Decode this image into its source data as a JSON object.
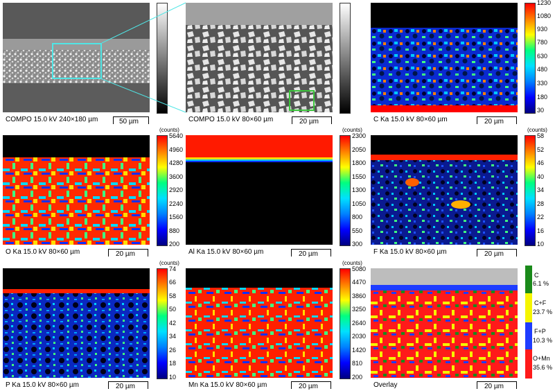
{
  "panels": [
    {
      "caption": "COMPO 15.0 kV 240×180 µm",
      "scale": "50 µm"
    },
    {
      "caption": "COMPO 15.0 kV 80×60 µm",
      "scale": "20 µm"
    },
    {
      "caption": "C Ka 15.0 kV 80×60 µm",
      "scale": "20 µm"
    },
    {
      "caption": "O Ka 15.0 kV 80×60 µm",
      "scale": "20 µm"
    },
    {
      "caption": "Al Ka 15.0 kV 80×60 µm",
      "scale": "20 µm"
    },
    {
      "caption": "F Ka 15.0 kV 80×60 µm",
      "scale": "20 µm"
    },
    {
      "caption": "P Ka 15.0 kV 80×60 µm",
      "scale": "20 µm"
    },
    {
      "caption": "Mn Ka 15.0 kV 80×60 µm",
      "scale": "20 µm"
    },
    {
      "caption": "Overlay",
      "scale": "20 µm"
    }
  ],
  "counts_label": "(counts)",
  "colorbars": {
    "C": [
      "1230",
      "1080",
      "930",
      "780",
      "630",
      "480",
      "330",
      "180",
      "30"
    ],
    "O": [
      "5640",
      "4960",
      "4280",
      "3600",
      "2920",
      "2240",
      "1560",
      "880",
      "200"
    ],
    "Al": [
      "2300",
      "2050",
      "1800",
      "1550",
      "1300",
      "1050",
      "800",
      "550",
      "300"
    ],
    "F": [
      "58",
      "52",
      "46",
      "40",
      "34",
      "28",
      "22",
      "16",
      "10"
    ],
    "P": [
      "74",
      "66",
      "58",
      "50",
      "42",
      "34",
      "26",
      "18",
      "10"
    ],
    "Mn": [
      "5080",
      "4470",
      "3860",
      "3250",
      "2640",
      "2030",
      "1420",
      "810",
      "200"
    ]
  },
  "overlay_legend": [
    {
      "name": "C",
      "pct": "6.1 %",
      "color": "#1a8a1a"
    },
    {
      "name": "C+F",
      "pct": "23.7 %",
      "color": "#f5f500"
    },
    {
      "name": "F+P",
      "pct": "10.3 %",
      "color": "#1e3cff"
    },
    {
      "name": "O+Mn",
      "pct": "35.6 %",
      "color": "#ff1a1a"
    }
  ],
  "colors": {
    "jet": [
      "#ff0000",
      "#ff8000",
      "#ffff00",
      "#80ff40",
      "#00ff80",
      "#00e0ff",
      "#0080ff",
      "#0000ff",
      "#000080"
    ],
    "gray_bar": [
      "#ffffff",
      "#000000"
    ],
    "highlight_cyan": "#4fe6e6",
    "highlight_green": "#3bc43b"
  }
}
